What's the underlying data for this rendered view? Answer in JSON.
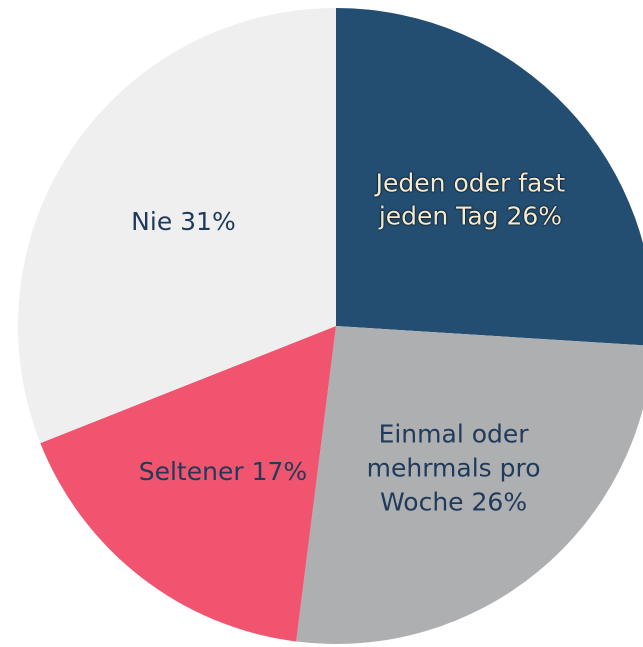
{
  "chart_data": {
    "type": "pie",
    "categories": [
      "Jeden oder fast jeden Tag",
      "Einmal oder mehrmals pro Woche",
      "Seltener",
      "Nie"
    ],
    "values": [
      26,
      26,
      17,
      31
    ],
    "value_labels": [
      "26%",
      "26%",
      "17%",
      "31%"
    ],
    "colors": [
      "#234e72",
      "#aeafb1",
      "#f0546e",
      "#efefef"
    ]
  }
}
